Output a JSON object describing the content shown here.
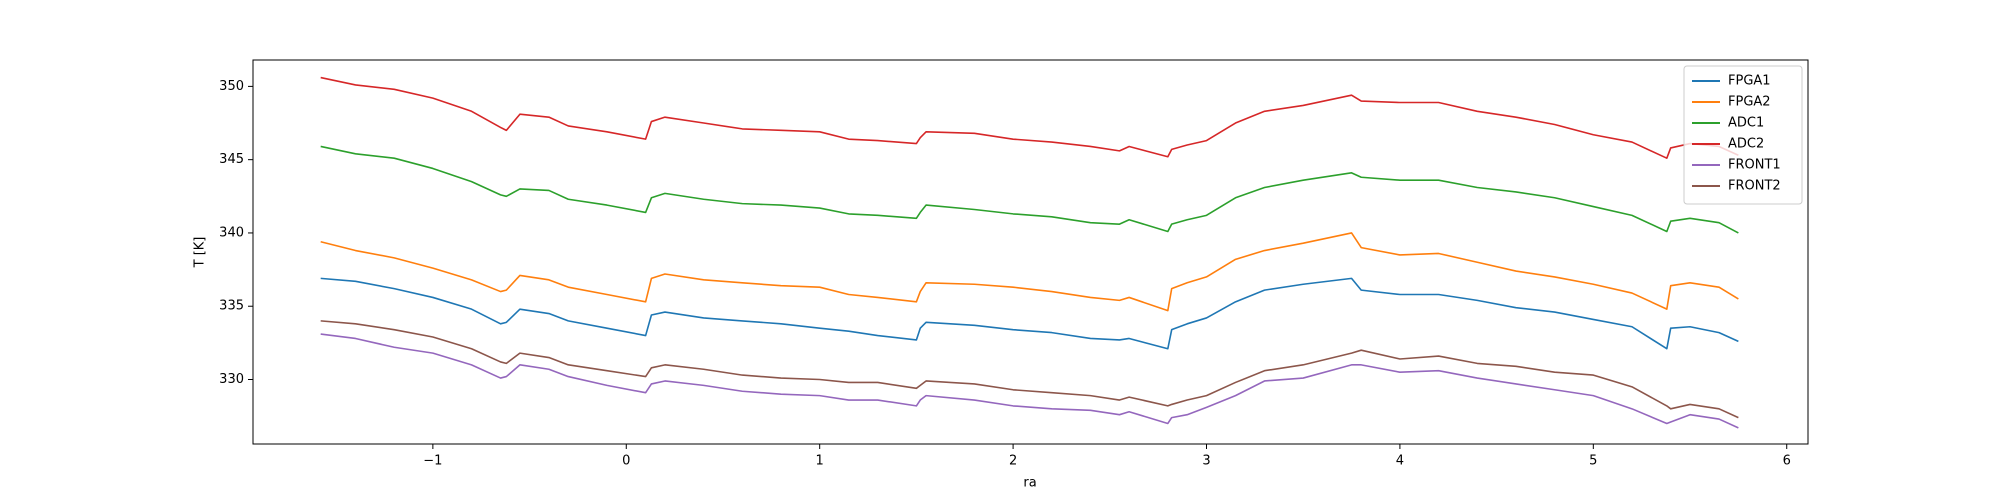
{
  "chart_data": {
    "type": "line",
    "xlabel": "ra",
    "ylabel": "T [K]",
    "x": [
      -1.58,
      -1.4,
      -1.2,
      -1.0,
      -0.8,
      -0.65,
      -0.62,
      -0.55,
      -0.4,
      -0.3,
      -0.1,
      0.1,
      0.13,
      0.2,
      0.4,
      0.6,
      0.8,
      1.0,
      1.15,
      1.3,
      1.5,
      1.52,
      1.55,
      1.8,
      2.0,
      2.2,
      2.4,
      2.55,
      2.6,
      2.8,
      2.82,
      2.9,
      3.0,
      3.15,
      3.3,
      3.5,
      3.75,
      3.8,
      4.0,
      4.2,
      4.4,
      4.6,
      4.8,
      5.0,
      5.2,
      5.38,
      5.4,
      5.5,
      5.65,
      5.75
    ],
    "series": [
      {
        "name": "FPGA1",
        "color": "#1f77b4",
        "values": [
          336.9,
          336.7,
          336.2,
          335.6,
          334.8,
          333.8,
          333.9,
          334.8,
          334.5,
          334.0,
          333.5,
          333.0,
          334.4,
          334.6,
          334.2,
          334.0,
          333.8,
          333.5,
          333.3,
          333.0,
          332.7,
          333.5,
          333.9,
          333.7,
          333.4,
          333.2,
          332.8,
          332.7,
          332.8,
          332.1,
          333.4,
          333.8,
          334.2,
          335.3,
          336.1,
          336.5,
          336.9,
          336.1,
          335.8,
          335.8,
          335.4,
          334.9,
          334.6,
          334.1,
          333.6,
          332.1,
          333.5,
          333.6,
          333.2,
          332.6
        ]
      },
      {
        "name": "FPGA2",
        "color": "#ff7f0e",
        "values": [
          339.4,
          338.8,
          338.3,
          337.6,
          336.8,
          336.0,
          336.1,
          337.1,
          336.8,
          336.3,
          335.8,
          335.3,
          336.9,
          337.2,
          336.8,
          336.6,
          336.4,
          336.3,
          335.8,
          335.6,
          335.3,
          336.0,
          336.6,
          336.5,
          336.3,
          336.0,
          335.6,
          335.4,
          335.6,
          334.7,
          336.2,
          336.6,
          337.0,
          338.2,
          338.8,
          339.3,
          340.0,
          339.0,
          338.5,
          338.6,
          338.0,
          337.4,
          337.0,
          336.5,
          335.9,
          334.8,
          336.4,
          336.6,
          336.3,
          335.5
        ]
      },
      {
        "name": "ADC1",
        "color": "#2ca02c",
        "values": [
          345.9,
          345.4,
          345.1,
          344.4,
          343.5,
          342.6,
          342.5,
          343.0,
          342.9,
          342.3,
          341.9,
          341.4,
          342.4,
          342.7,
          342.3,
          342.0,
          341.9,
          341.7,
          341.3,
          341.2,
          341.0,
          341.4,
          341.9,
          341.6,
          341.3,
          341.1,
          340.7,
          340.6,
          340.9,
          340.1,
          340.6,
          340.9,
          341.2,
          342.4,
          343.1,
          343.6,
          344.1,
          343.8,
          343.6,
          343.6,
          343.1,
          342.8,
          342.4,
          341.8,
          341.2,
          340.1,
          340.8,
          341.0,
          340.7,
          340.0
        ]
      },
      {
        "name": "ADC2",
        "color": "#d62728",
        "values": [
          350.6,
          350.1,
          349.8,
          349.2,
          348.3,
          347.2,
          347.0,
          348.1,
          347.9,
          347.3,
          346.9,
          346.4,
          347.6,
          347.9,
          347.5,
          347.1,
          347.0,
          346.9,
          346.4,
          346.3,
          346.1,
          346.5,
          346.9,
          346.8,
          346.4,
          346.2,
          345.9,
          345.6,
          345.9,
          345.2,
          345.7,
          346.0,
          346.3,
          347.5,
          348.3,
          348.7,
          349.4,
          349.0,
          348.9,
          348.9,
          348.3,
          347.9,
          347.4,
          346.7,
          346.2,
          345.1,
          345.8,
          346.1,
          345.9,
          345.3
        ]
      },
      {
        "name": "FRONT1",
        "color": "#9467bd",
        "values": [
          333.1,
          332.8,
          332.2,
          331.8,
          331.0,
          330.1,
          330.2,
          331.0,
          330.7,
          330.2,
          329.6,
          329.1,
          329.7,
          329.9,
          329.6,
          329.2,
          329.0,
          328.9,
          328.6,
          328.6,
          328.2,
          328.6,
          328.9,
          328.6,
          328.2,
          328.0,
          327.9,
          327.6,
          327.8,
          327.0,
          327.4,
          327.6,
          328.1,
          328.9,
          329.9,
          330.1,
          331.0,
          331.0,
          330.5,
          330.6,
          330.1,
          329.7,
          329.3,
          328.9,
          328.0,
          327.0,
          327.1,
          327.6,
          327.3,
          326.7
        ]
      },
      {
        "name": "FRONT2",
        "color": "#8c564b",
        "values": [
          334.0,
          333.8,
          333.4,
          332.9,
          332.1,
          331.2,
          331.1,
          331.8,
          331.5,
          331.0,
          330.6,
          330.2,
          330.8,
          331.0,
          330.7,
          330.3,
          330.1,
          330.0,
          329.8,
          329.8,
          329.4,
          329.6,
          329.9,
          329.7,
          329.3,
          329.1,
          328.9,
          328.6,
          328.8,
          328.2,
          328.3,
          328.6,
          328.9,
          329.8,
          330.6,
          331.0,
          331.8,
          332.0,
          331.4,
          331.6,
          331.1,
          330.9,
          330.5,
          330.3,
          329.5,
          328.2,
          328.0,
          328.3,
          328.0,
          327.4
        ]
      }
    ],
    "xlim": [
      -1.93,
      6.11
    ],
    "xticks": [
      {
        "value": -1,
        "label": "−1"
      },
      0,
      1,
      2,
      3,
      4,
      5,
      6
    ],
    "ylim": [
      325.6,
      351.8
    ],
    "yticks": [
      330,
      335,
      340,
      345,
      350
    ],
    "legend": "upper right",
    "grid": false
  }
}
